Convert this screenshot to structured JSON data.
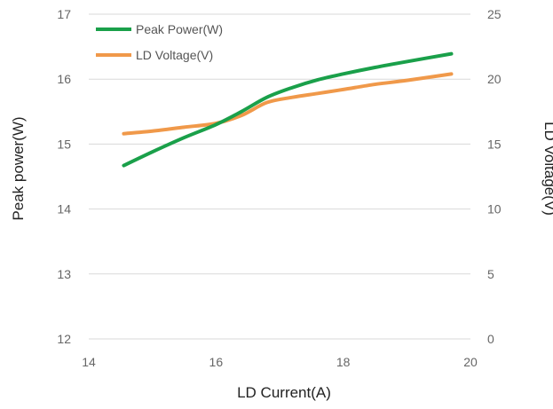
{
  "chart_data": {
    "type": "line",
    "xlabel": "LD Current(A)",
    "ylabel": "Peak power(W)",
    "y2label": "LD Voltage(V)",
    "xlim": [
      14,
      20
    ],
    "ylim": [
      12,
      17
    ],
    "y2lim": [
      0,
      25
    ],
    "x_ticks": [
      14,
      16,
      18,
      20
    ],
    "y_ticks": [
      12,
      13,
      14,
      15,
      16,
      17
    ],
    "y2_ticks": [
      0,
      5,
      10,
      15,
      20,
      25
    ],
    "grid": true,
    "legend_position": "top-left",
    "series": [
      {
        "name": "Peak Power(W)",
        "axis": "left",
        "color": "#1aa04a",
        "x": [
          14.55,
          15.0,
          15.5,
          16.0,
          16.4,
          16.8,
          17.2,
          17.6,
          18.0,
          18.5,
          19.0,
          19.7
        ],
        "y": [
          14.67,
          14.88,
          15.1,
          15.3,
          15.5,
          15.72,
          15.87,
          15.99,
          16.08,
          16.18,
          16.27,
          16.39
        ]
      },
      {
        "name": "LD Voltage(V)",
        "axis": "right",
        "color": "#f0994a",
        "x": [
          14.55,
          15.0,
          15.5,
          16.0,
          16.4,
          16.8,
          17.2,
          17.6,
          18.0,
          18.5,
          19.0,
          19.7
        ],
        "y": [
          15.8,
          16.0,
          16.3,
          16.6,
          17.2,
          18.2,
          18.6,
          18.9,
          19.2,
          19.6,
          19.9,
          20.4
        ]
      }
    ]
  }
}
